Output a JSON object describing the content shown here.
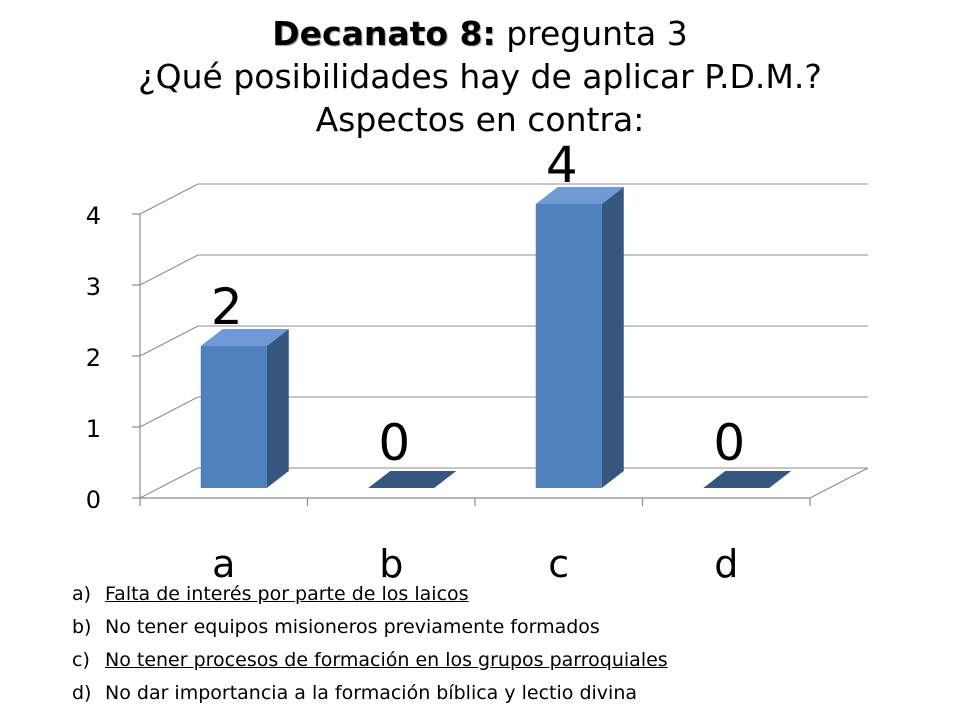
{
  "title": {
    "bold": "Decanato 8:",
    "rest": " pregunta 3",
    "line2": "¿Qué posibilidades hay de aplicar P.D.M.?",
    "line3": "Aspectos en contra:"
  },
  "chart_data": {
    "type": "bar",
    "style": "3d-column",
    "categories": [
      "a",
      "b",
      "c",
      "d"
    ],
    "values": [
      2,
      0,
      4,
      0
    ],
    "data_labels": [
      "2",
      "0",
      "4",
      "0"
    ],
    "yticks": [
      "0",
      "1",
      "2",
      "3",
      "4"
    ],
    "ylim": [
      0,
      4
    ],
    "grid": true,
    "bar_color": "#4f81bd",
    "bar_side_color": "#35577f",
    "bar_top_color": "#6f9ad3"
  },
  "legend": [
    {
      "marker": "a)",
      "text": "Falta de interés por parte de los laicos",
      "underline": true
    },
    {
      "marker": "b)",
      "text": "No tener equipos misioneros previamente formados",
      "underline": false
    },
    {
      "marker": "c)",
      "text": "No tener procesos de formación en los grupos parroquiales",
      "underline": true
    },
    {
      "marker": "d)",
      "text": "No dar importancia a la formación bíblica y lectio divina",
      "underline": false
    }
  ]
}
